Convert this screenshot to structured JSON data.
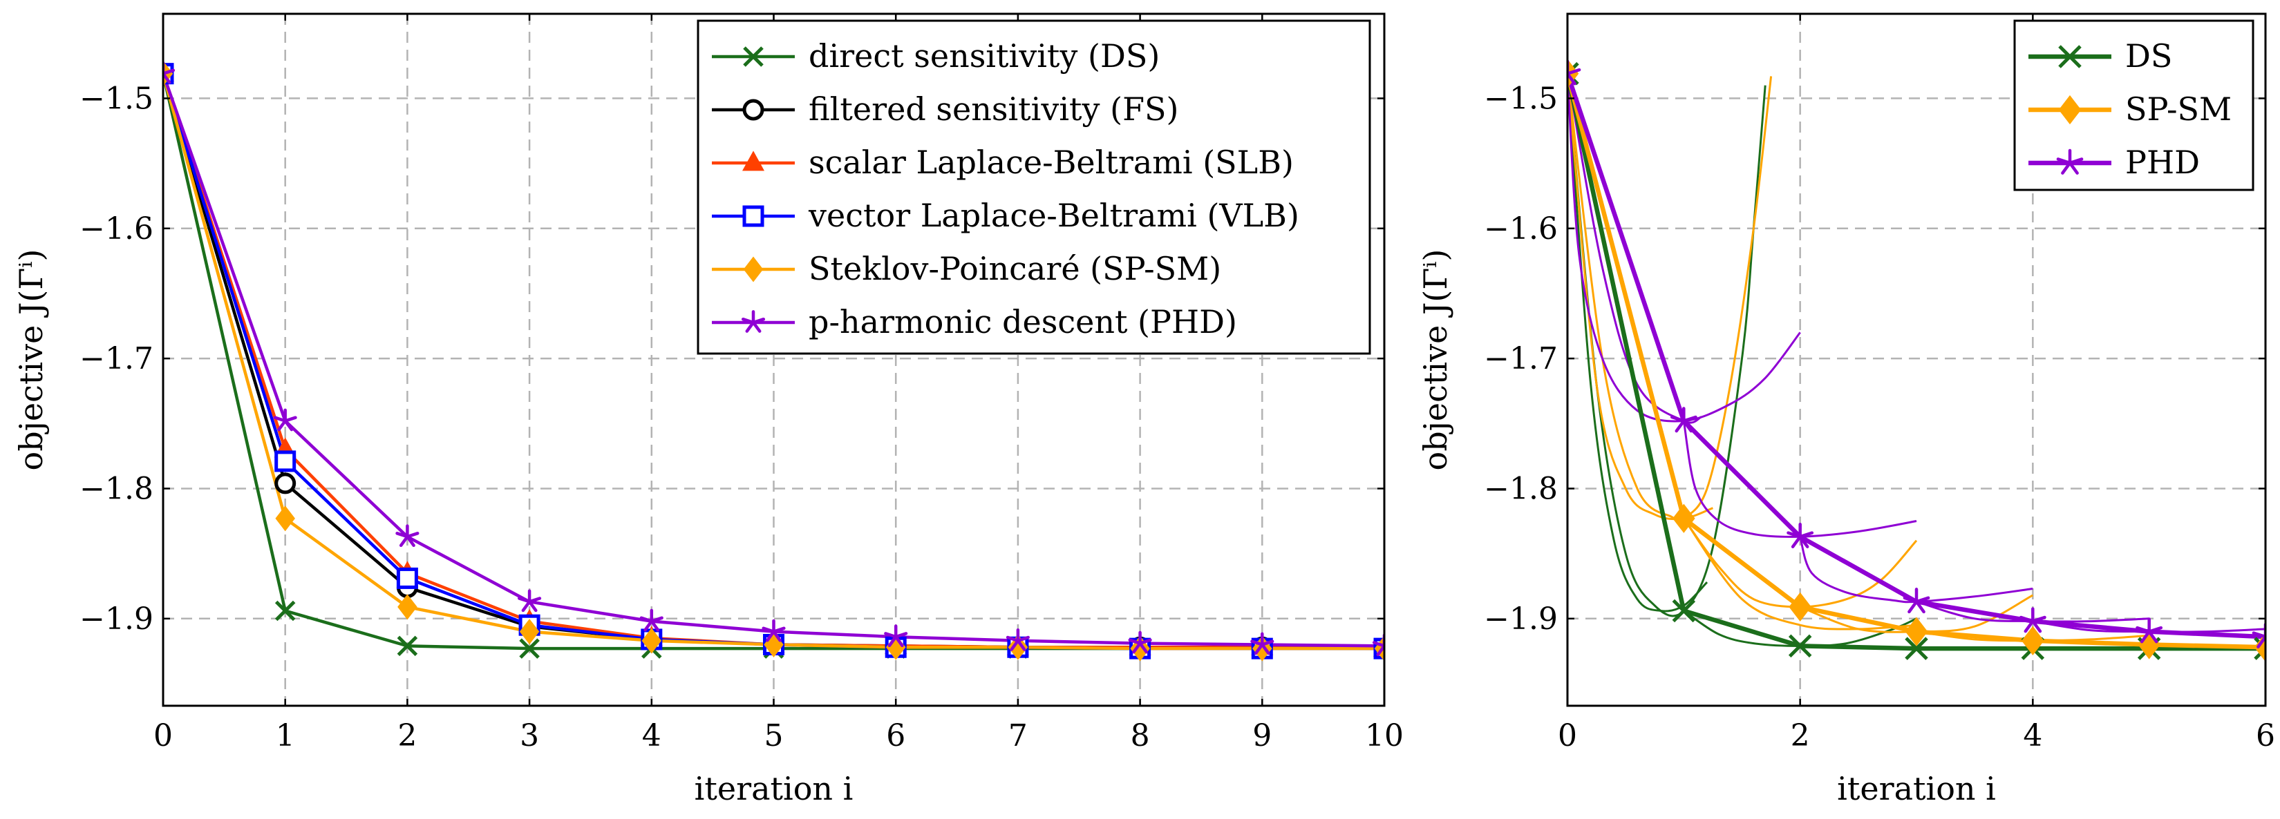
{
  "chart_data": [
    {
      "type": "line",
      "xlabel": "iteration i",
      "ylabel": "objective J(Γⁱ)",
      "xlim": [
        0,
        10
      ],
      "ylim": [
        -1.967,
        -1.435
      ],
      "x_ticks": [
        0,
        1,
        2,
        3,
        4,
        5,
        6,
        7,
        8,
        9,
        10
      ],
      "x_tick_labels": [
        "0",
        "1",
        "2",
        "3",
        "4",
        "5",
        "6",
        "7",
        "8",
        "9",
        "10"
      ],
      "y_ticks": [
        -1.5,
        -1.6,
        -1.7,
        -1.8,
        -1.9
      ],
      "y_tick_labels": [
        "−1.5",
        "−1.6",
        "−1.7",
        "−1.8",
        "−1.9"
      ],
      "grid": true,
      "legend_position": "top-right",
      "series": [
        {
          "name": "direct sensitivity (DS)",
          "color": "#1b6e1b",
          "marker": "x",
          "x": [
            0,
            1,
            2,
            3,
            4,
            5,
            6,
            7,
            8,
            9,
            10
          ],
          "values": [
            -1.481,
            -1.894,
            -1.921,
            -1.923,
            -1.923,
            -1.923,
            -1.923,
            -1.923,
            -1.923,
            -1.923,
            -1.923
          ]
        },
        {
          "name": "filtered sensitivity (FS)",
          "color": "#000000",
          "marker": "o",
          "x": [
            0,
            1,
            2,
            3,
            4,
            5,
            6,
            7,
            8,
            9,
            10
          ],
          "values": [
            -1.481,
            -1.796,
            -1.876,
            -1.906,
            -1.916,
            -1.92,
            -1.921,
            -1.922,
            -1.922,
            -1.922,
            -1.923
          ]
        },
        {
          "name": "scalar Laplace-Beltrami (SLB)",
          "color": "#ff4000",
          "marker": "triangle",
          "x": [
            0,
            1,
            2,
            3,
            4,
            5,
            6,
            7,
            8,
            9,
            10
          ],
          "values": [
            -1.481,
            -1.77,
            -1.865,
            -1.902,
            -1.915,
            -1.92,
            -1.921,
            -1.922,
            -1.922,
            -1.922,
            -1.923
          ]
        },
        {
          "name": "vector Laplace-Beltrami (VLB)",
          "color": "#0000ff",
          "marker": "square",
          "x": [
            0,
            1,
            2,
            3,
            4,
            5,
            6,
            7,
            8,
            9,
            10
          ],
          "values": [
            -1.481,
            -1.779,
            -1.869,
            -1.905,
            -1.916,
            -1.92,
            -1.922,
            -1.922,
            -1.923,
            -1.923,
            -1.923
          ]
        },
        {
          "name": "Steklov-Poincaré (SP-SM)",
          "color": "#ffa500",
          "marker": "diamond",
          "x": [
            0,
            1,
            2,
            3,
            4,
            5,
            6,
            7,
            8,
            9,
            10
          ],
          "values": [
            -1.481,
            -1.823,
            -1.891,
            -1.91,
            -1.917,
            -1.92,
            -1.922,
            -1.922,
            -1.923,
            -1.923,
            -1.923
          ]
        },
        {
          "name": "p-harmonic descent (PHD)",
          "color": "#8f00d4",
          "marker": "star",
          "x": [
            0,
            1,
            2,
            3,
            4,
            5,
            6,
            7,
            8,
            9,
            10
          ],
          "values": [
            -1.481,
            -1.748,
            -1.837,
            -1.887,
            -1.902,
            -1.91,
            -1.914,
            -1.917,
            -1.919,
            -1.92,
            -1.921
          ]
        }
      ]
    },
    {
      "type": "line",
      "xlabel": "iteration i",
      "ylabel": "objective J(Γⁱ)",
      "xlim": [
        0,
        6
      ],
      "ylim": [
        -1.967,
        -1.435
      ],
      "x_ticks": [
        0,
        2,
        4,
        6
      ],
      "x_tick_labels": [
        "0",
        "2",
        "4",
        "6"
      ],
      "y_ticks": [
        -1.5,
        -1.6,
        -1.7,
        -1.8,
        -1.9
      ],
      "y_tick_labels": [
        "−1.5",
        "−1.6",
        "−1.7",
        "−1.8",
        "−1.9"
      ],
      "grid": true,
      "legend_position": "top-right",
      "series": [
        {
          "name": "DS",
          "color": "#1b6e1b",
          "marker": "x",
          "x": [
            0,
            1,
            2,
            3,
            4,
            5,
            6
          ],
          "values": [
            -1.481,
            -1.894,
            -1.921,
            -1.923,
            -1.923,
            -1.923,
            -1.923
          ]
        },
        {
          "name": "SP-SM",
          "color": "#ffa500",
          "marker": "diamond",
          "x": [
            0,
            1,
            2,
            3,
            4,
            5,
            6
          ],
          "values": [
            -1.481,
            -1.823,
            -1.891,
            -1.91,
            -1.917,
            -1.92,
            -1.922
          ]
        },
        {
          "name": "PHD",
          "color": "#8f00d4",
          "marker": "star",
          "x": [
            0,
            1,
            2,
            3,
            4,
            5,
            6
          ],
          "values": [
            -1.481,
            -1.748,
            -1.837,
            -1.887,
            -1.902,
            -1.91,
            -1.914
          ]
        }
      ],
      "line_search_curves": [
        {
          "series": "DS",
          "x": [
            0,
            0.2,
            0.4,
            0.6,
            0.8,
            1.0,
            1.2
          ],
          "values": [
            -1.481,
            -1.72,
            -1.84,
            -1.885,
            -1.894,
            -1.89,
            -1.872
          ]
        },
        {
          "series": "DS",
          "x": [
            0,
            0.25,
            0.5,
            0.75,
            1.0,
            1.25,
            1.5,
            1.6,
            1.7
          ],
          "values": [
            -1.481,
            -1.72,
            -1.85,
            -1.89,
            -1.894,
            -1.845,
            -1.7,
            -1.6,
            -1.49
          ]
        },
        {
          "series": "DS",
          "x": [
            1,
            1.3,
            1.6,
            2.0,
            2.4,
            2.8,
            3.0
          ],
          "values": [
            -1.894,
            -1.912,
            -1.919,
            -1.921,
            -1.919,
            -1.908,
            -1.9
          ]
        },
        {
          "series": "SP-SM",
          "x": [
            0,
            0.3,
            0.6,
            0.9,
            1.0,
            1.2,
            1.4,
            1.6,
            1.75
          ],
          "values": [
            -1.481,
            -1.7,
            -1.8,
            -1.822,
            -1.823,
            -1.8,
            -1.72,
            -1.6,
            -1.483
          ]
        },
        {
          "series": "SP-SM",
          "x": [
            0,
            0.25,
            0.5,
            0.75,
            1.0,
            1.25
          ],
          "values": [
            -1.481,
            -1.72,
            -1.8,
            -1.82,
            -1.823,
            -1.815
          ]
        },
        {
          "series": "SP-SM",
          "x": [
            1,
            1.3,
            1.6,
            2.0,
            2.4,
            2.7,
            3.0
          ],
          "values": [
            -1.823,
            -1.86,
            -1.885,
            -1.891,
            -1.885,
            -1.87,
            -1.84
          ]
        },
        {
          "series": "SP-SM",
          "x": [
            1,
            1.5,
            2.0,
            2.5,
            3.0
          ],
          "values": [
            -1.823,
            -1.885,
            -1.905,
            -1.908,
            -1.905
          ]
        },
        {
          "series": "SP-SM",
          "x": [
            2,
            2.5,
            3.0,
            3.5,
            4.0
          ],
          "values": [
            -1.891,
            -1.908,
            -1.91,
            -1.906,
            -1.882
          ]
        },
        {
          "series": "SP-SM",
          "x": [
            3,
            3.5,
            4.0,
            4.5,
            5.0
          ],
          "values": [
            -1.91,
            -1.916,
            -1.917,
            -1.916,
            -1.913
          ]
        },
        {
          "series": "PHD",
          "x": [
            0,
            0.1,
            0.3,
            0.6,
            1.0,
            1.4,
            1.7,
            2.0
          ],
          "values": [
            -1.481,
            -1.62,
            -1.7,
            -1.74,
            -1.748,
            -1.735,
            -1.715,
            -1.68
          ]
        },
        {
          "series": "PHD",
          "x": [
            0,
            0.3,
            0.6,
            1.0,
            1.15
          ],
          "values": [
            -1.481,
            -1.63,
            -1.72,
            -1.748,
            -1.745
          ]
        },
        {
          "series": "PHD",
          "x": [
            1,
            1.1,
            1.3,
            1.6,
            2.0,
            2.5,
            3.0
          ],
          "values": [
            -1.748,
            -1.8,
            -1.825,
            -1.835,
            -1.837,
            -1.833,
            -1.825
          ]
        },
        {
          "series": "PHD",
          "x": [
            2,
            2.1,
            2.4,
            2.8,
            3.0,
            3.5,
            4.0
          ],
          "values": [
            -1.837,
            -1.865,
            -1.88,
            -1.886,
            -1.887,
            -1.883,
            -1.877
          ]
        },
        {
          "series": "PHD",
          "x": [
            3,
            3.5,
            4.0,
            4.5,
            5.0
          ],
          "values": [
            -1.887,
            -1.9,
            -1.902,
            -1.902,
            -1.9
          ]
        },
        {
          "series": "PHD",
          "x": [
            4,
            4.5,
            5.0,
            5.5,
            6.0
          ],
          "values": [
            -1.902,
            -1.909,
            -1.91,
            -1.91,
            -1.908
          ]
        }
      ]
    }
  ]
}
